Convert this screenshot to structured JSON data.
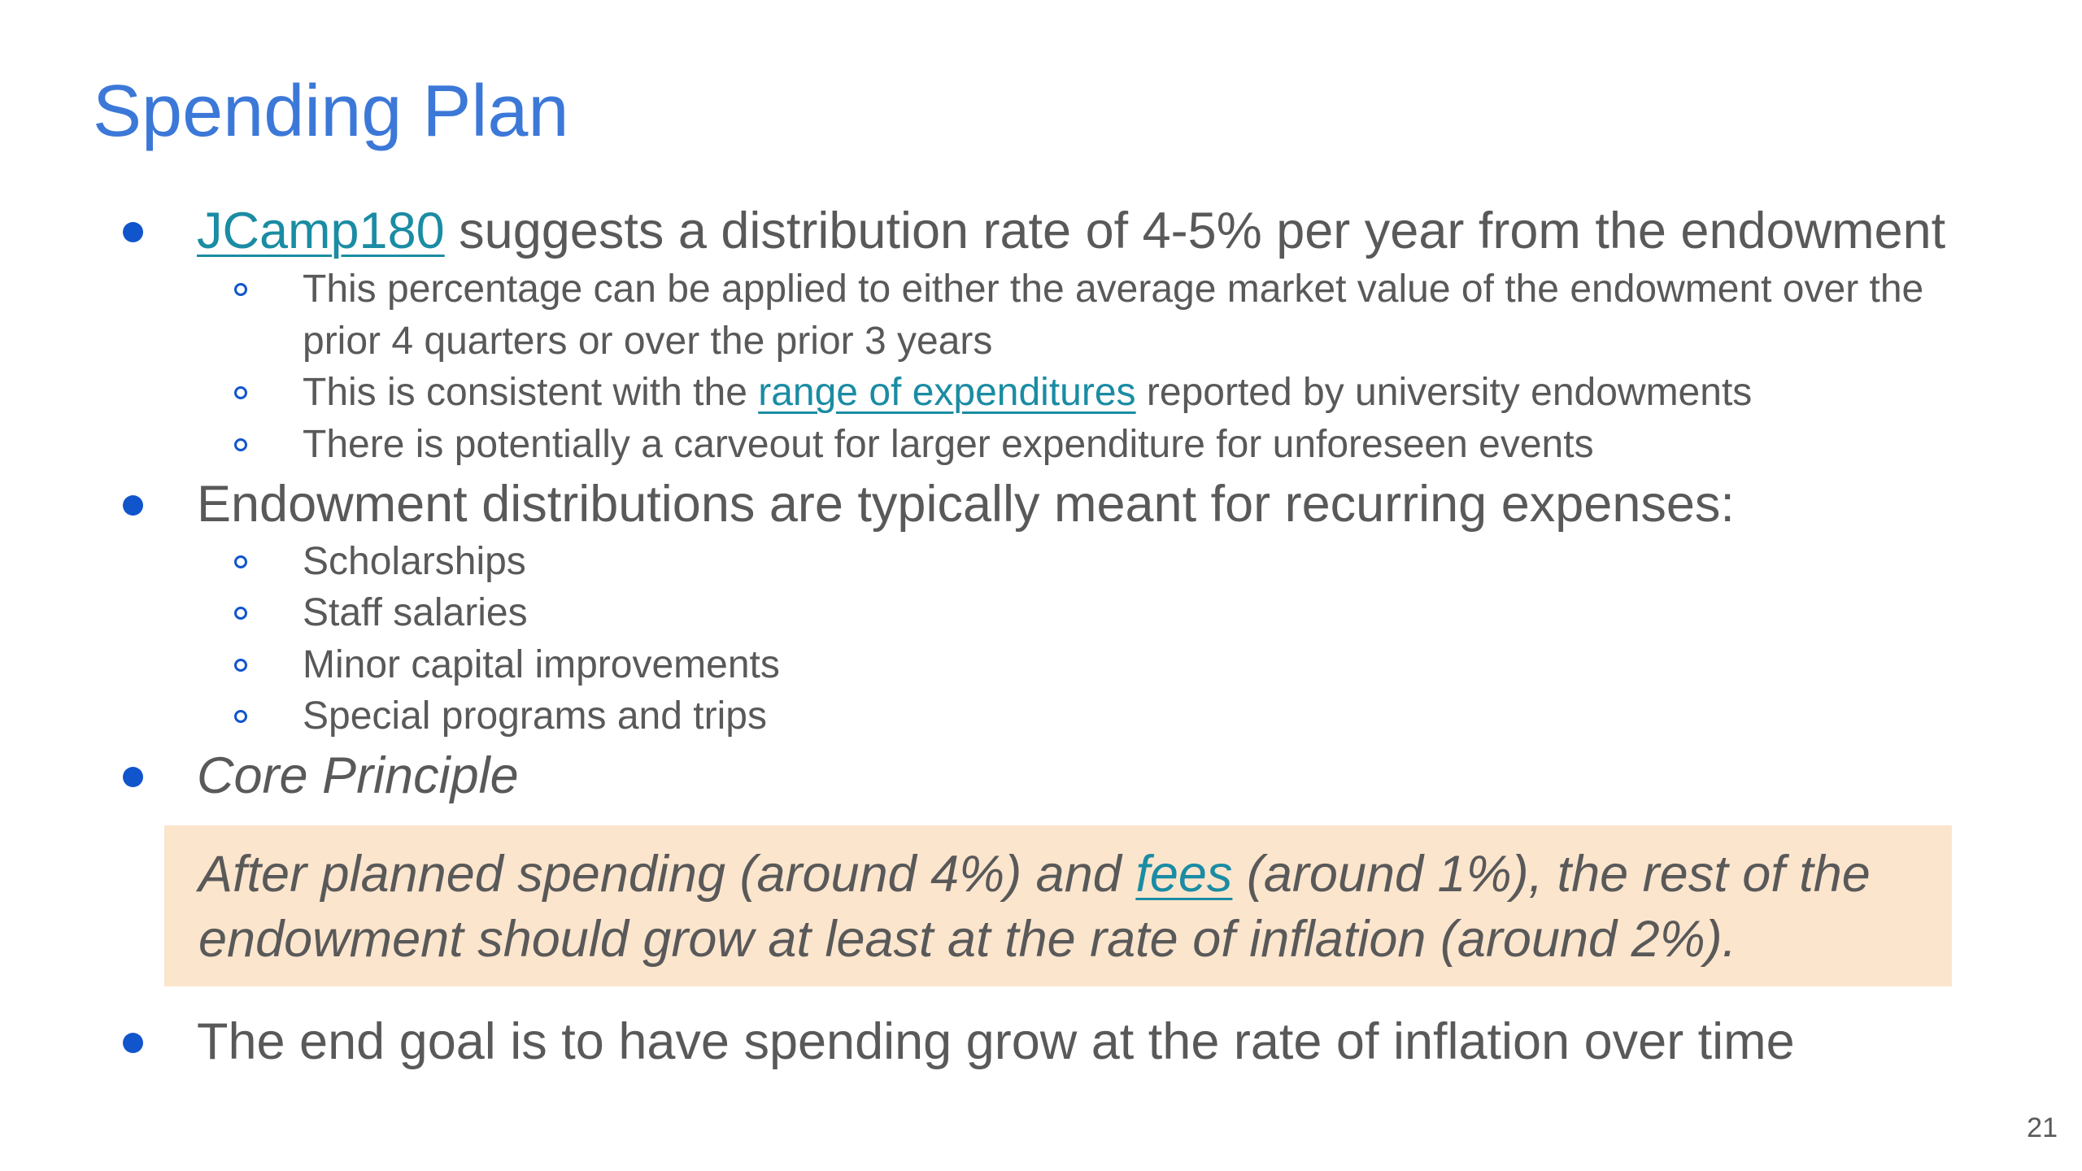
{
  "slide": {
    "title": "Spending Plan",
    "bullet1": {
      "link": "JCamp180",
      "rest": " suggests a distribution rate of 4-5% per year from the endowment",
      "subitems": {
        "s1_line1": "This percentage can be applied to either the average market value of the endowment over the",
        "s1_line2": "prior 4 quarters or over the prior 3 years",
        "s2_before": "This is consistent with the ",
        "s2_link": "range of expenditures",
        "s2_after": " reported by university endowments",
        "s3": "There is potentially a carveout for larger expenditure for unforeseen events"
      }
    },
    "bullet2": {
      "text": "Endowment distributions are typically meant for recurring expenses:",
      "subitems": [
        "Scholarships",
        "Staff salaries",
        "Minor capital improvements",
        "Special programs and trips"
      ]
    },
    "bullet3": {
      "text": "Core Principle"
    },
    "callout": {
      "part1": "After planned spending (around 4%) and ",
      "link": "fees",
      "part2": " (around 1%), the rest of the endowment should grow at least at the rate of inflation (around 2%)."
    },
    "bullet4": {
      "text": "The end goal is to have spending grow at the rate of inflation over time"
    },
    "page_number": "21"
  },
  "colors": {
    "title": "#3c78d8",
    "body_text": "#595959",
    "bullet": "#1155cc",
    "link": "#1a8ca3",
    "callout_bg": "#fce5cd"
  }
}
